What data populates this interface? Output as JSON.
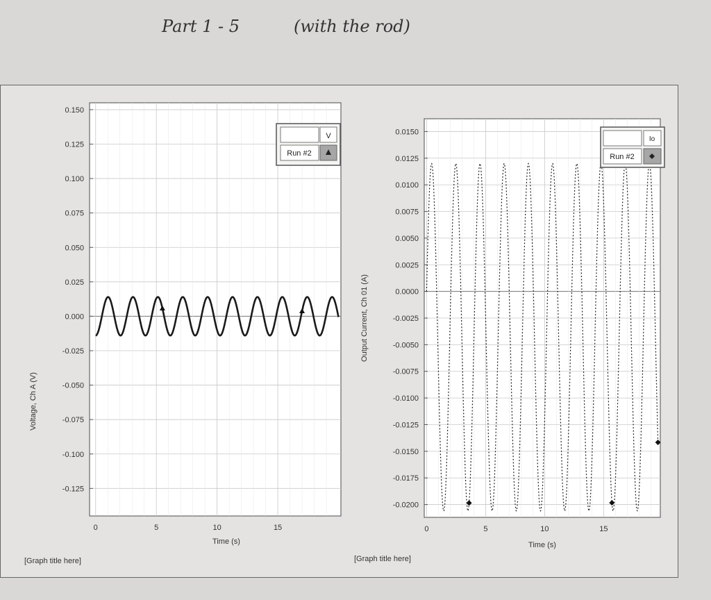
{
  "header": {
    "part_text": "Part 1 - 5",
    "note_text": "(with the rod)"
  },
  "chart_data": [
    {
      "type": "line",
      "title": "[Graph title here]",
      "xlabel": "Time (s)",
      "ylabel": "Voltage, Ch A (V)",
      "xlim": [
        -0.5,
        20.2
      ],
      "ylim": [
        -0.145,
        0.155
      ],
      "x_ticks": [
        "0",
        "5",
        "10",
        "15"
      ],
      "y_ticks": [
        "0.150",
        "0.125",
        "0.100",
        "0.075",
        "0.050",
        "0.025",
        "0.000",
        "-0.025",
        "-0.050",
        "-0.075",
        "-0.100",
        "-0.125"
      ],
      "legend": {
        "position": "top-right",
        "field": "V",
        "run": "Run #2",
        "marker": "triangle"
      },
      "grid": true,
      "series": [
        {
          "amplitude": 0.014,
          "offset": 0.0,
          "period": 2.05,
          "phase_start": -0.12,
          "x_start": 0,
          "x_end": 20,
          "marker_x": [
            5.5,
            17.0
          ]
        }
      ]
    },
    {
      "type": "line",
      "title": "[Graph title here]",
      "xlabel": "Time (s)",
      "ylabel": "Output Current, Ch 01 (A)",
      "xlim": [
        -0.2,
        19.8
      ],
      "ylim": [
        -0.0212,
        0.0162
      ],
      "x_ticks": [
        "0",
        "5",
        "10",
        "15"
      ],
      "y_ticks": [
        "0.0150",
        "0.0125",
        "0.0100",
        "0.0075",
        "0.0050",
        "0.0025",
        "0.0000",
        "-0.0025",
        "-0.0050",
        "-0.0075",
        "-0.0100",
        "-0.0125",
        "-0.0150",
        "-0.0175",
        "-0.0200"
      ],
      "legend": {
        "position": "top-right",
        "field": "Io",
        "run": "Run #2",
        "marker": "diamond"
      },
      "grid": true,
      "series": [
        {
          "amplitude": 0.0163,
          "offset": -0.0043,
          "period": 2.05,
          "phase_start": 0.0,
          "x_start": 0,
          "x_end": 19.6,
          "marker_x": [
            3.6,
            15.7,
            19.6
          ]
        }
      ]
    }
  ]
}
